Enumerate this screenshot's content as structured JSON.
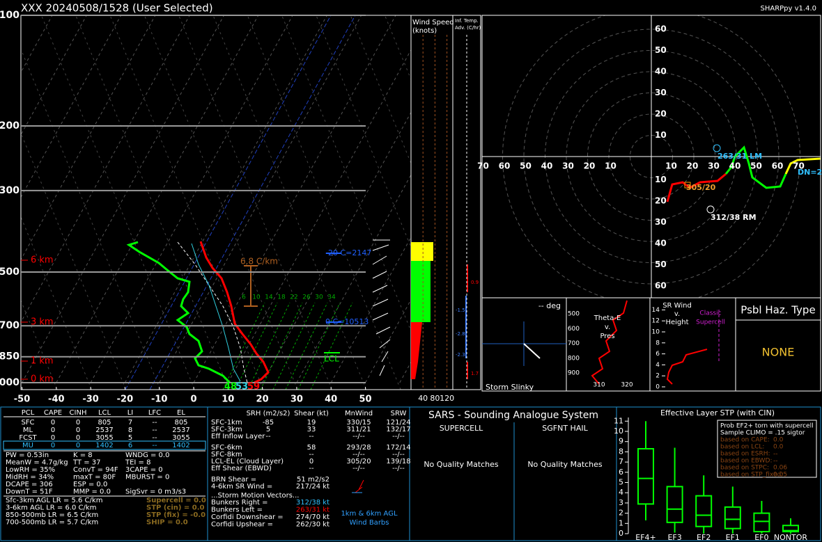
{
  "header": {
    "title": "XXX   20240508/1528  (User Selected)",
    "version": "SHARPpy v1.4.0"
  },
  "skewt": {
    "pressure_ticks": [
      100,
      200,
      300,
      500,
      700,
      850,
      1000
    ],
    "temperature_ticks": [
      -50,
      -40,
      -30,
      -20,
      -10,
      0,
      10,
      20,
      30,
      40,
      50
    ],
    "height_labels": [
      "6 km",
      "3 km",
      "1 km",
      "0 km"
    ],
    "lapse_rate": "6.8 C/km",
    "minus20_level": "-20 C=2147",
    "freezing_level": "0 C=10513",
    "lcl": "LCL",
    "mixing_ratios": [
      6,
      10,
      14,
      18,
      22,
      26,
      30,
      34
    ],
    "surface_dewpoint": 48,
    "surface_wetbulb": 53,
    "surface_temperature": 59
  },
  "wind_speed": {
    "title": [
      "Wind Speed",
      "(knots)"
    ],
    "ticks": [
      40,
      80,
      120
    ]
  },
  "temp_advection": {
    "title": [
      "Inf. Temp.",
      "Adv. (C/hr)"
    ],
    "values": [
      "0.9",
      "-1.5",
      "-2.8",
      "-2.3",
      "1.7"
    ]
  },
  "hodograph": {
    "rings": [
      10,
      20,
      30,
      40,
      50,
      60
    ],
    "x_rings": [
      10,
      20,
      30,
      40,
      50,
      60,
      70
    ],
    "mean_wind": "305/20",
    "right_mover": "312/38 RM",
    "left_mover": "263/31 LM",
    "downshear": "DN=2"
  },
  "slinky": {
    "angle": "-- deg",
    "title": "Storm Slinky"
  },
  "theta_e": {
    "title": [
      "Theta-E",
      "v.",
      "Pres"
    ],
    "pressure_ticks": [
      500,
      600,
      700,
      800,
      900
    ],
    "theta_ticks": [
      310,
      320
    ]
  },
  "sr_wind": {
    "title": [
      "SR Wind",
      "v.",
      "Height"
    ],
    "reference": [
      "Classic",
      "Supercell"
    ],
    "height_ticks": [
      0,
      2,
      4,
      6,
      8,
      10,
      12,
      14
    ]
  },
  "hazard": {
    "title": "Psbl Haz. Type",
    "value": "NONE"
  },
  "parcel_table": {
    "header": [
      "PCL",
      "CAPE",
      "CINH",
      "LCL",
      "LI",
      "LFC",
      "EL"
    ],
    "rows": [
      [
        "SFC",
        "0",
        "0",
        "805",
        "7",
        "--",
        "805"
      ],
      [
        "ML",
        "0",
        "0",
        "2537",
        "8",
        "--",
        "2537"
      ],
      [
        "FCST",
        "0",
        "0",
        "3055",
        "5",
        "--",
        "3055"
      ],
      [
        "MU",
        "0",
        "0",
        "1402",
        "6",
        "--",
        "1402"
      ]
    ]
  },
  "indices": [
    [
      "PW = 0.53in",
      "K = 8",
      "WNDG = 0.0"
    ],
    [
      "MeanW = 4.7g/kg",
      "TT = 37",
      "TEI = 8"
    ],
    [
      "LowRH = 35%",
      "ConvT = 94F",
      "3CAPE = 0"
    ],
    [
      "MidRH = 34%",
      "maxT = 80F",
      "MBURST = 0"
    ],
    [
      "DCAPE = 306",
      "ESP = 0.0"
    ],
    [
      "DownT = 51F",
      "MMP = 0.0",
      "SigSvr = 0 m3/s3"
    ]
  ],
  "lapse_rates": [
    "Sfc-3km AGL LR = 5.6 C/km",
    "3-6km AGL LR = 6.0 C/km",
    "850-500mb LR = 6.5 C/km",
    "700-500mb LR = 5.7 C/km"
  ],
  "composites": [
    "Supercell = 0.0",
    "STP (cin) = 0.0",
    "STP (fix) = -0.0",
    "SHIP = 0.0"
  ],
  "kinematics": {
    "header": [
      "SRH (m2/s2)",
      "Shear (kt)",
      "MnWind",
      "SRW"
    ],
    "rows": [
      {
        "label": "SFC-1km",
        "srh": "-85",
        "shear": "19",
        "mnwind": "330/15",
        "srw": "121/24"
      },
      {
        "label": "SFC-3km",
        "srh": "5",
        "shear": "33",
        "mnwind": "311/21",
        "srw": "132/17"
      },
      {
        "label": "Eff Inflow Layer",
        "srh": "--",
        "shear": "--",
        "mnwind": "--/--",
        "srw": "--/--"
      },
      {
        "label": "SFC-6km",
        "shear": "58",
        "mnwind": "293/28",
        "srw": "172/14"
      },
      {
        "label": "SFC-8km",
        "shear": "--",
        "mnwind": "--/--",
        "srw": "--/--"
      },
      {
        "label": "LCL-EL (Cloud Layer)",
        "shear": "0",
        "mnwind": "305/20",
        "srw": "139/18"
      },
      {
        "label": "Eff Shear (EBWD)",
        "shear": "--",
        "mnwind": "--/--",
        "srw": "--/--"
      }
    ],
    "misc": [
      {
        "label": "BRN Shear =",
        "value": "51 m2/s2"
      },
      {
        "label": "4-6km SR Wind =",
        "value": "217/24 kt"
      }
    ],
    "motion_title": "...Storm Motion Vectors...",
    "motions": [
      {
        "label": "Bunkers Right =",
        "value": "312/38 kt"
      },
      {
        "label": "Bunkers Left =",
        "value": "263/31 kt"
      },
      {
        "label": "Corfidi Downshear =",
        "value": "274/70 kt"
      },
      {
        "label": "Corfidi Upshear =",
        "value": "262/30 kt"
      }
    ],
    "barb_caption": [
      "1km & 6km AGL",
      "Wind Barbs"
    ]
  },
  "sars": {
    "title": "SARS - Sounding Analogue System",
    "columns": [
      "SUPERCELL",
      "SGFNT HAIL"
    ],
    "matches": [
      "No Quality Matches",
      "No Quality Matches"
    ]
  },
  "stp": {
    "title": "Effective Layer STP (with CIN)",
    "yticks": [
      0,
      1,
      2,
      3,
      4,
      5,
      6,
      7,
      8,
      9,
      10,
      11
    ],
    "categories": [
      "EF4+",
      "EF3",
      "EF2",
      "EF1",
      "EF0",
      "NONTOR"
    ],
    "boxes": [
      [
        1.3,
        2.9,
        5.4,
        8.3,
        11
      ],
      [
        0.1,
        1.1,
        2.4,
        4.6,
        8.4
      ],
      [
        0,
        0.7,
        1.8,
        3.7,
        5.7
      ],
      [
        0,
        0.5,
        1.4,
        2.6,
        4.6
      ],
      [
        0,
        0.2,
        1.2,
        2,
        3.2
      ],
      [
        0,
        0.2,
        0.3,
        0.8,
        1.5
      ]
    ],
    "legend": {
      "title": [
        "Prob EF2+ torn with supercell",
        "Sample CLIMO = .15 sigtor"
      ],
      "rows": [
        {
          "label": "based on CAPE:",
          "value": "0.0"
        },
        {
          "label": "based on LCL:",
          "value": "0.0"
        },
        {
          "label": "based on ESRH:",
          "value": "--"
        },
        {
          "label": "based on EBWD:",
          "value": "--"
        },
        {
          "label": "based on STPC:",
          "value": "0.06"
        },
        {
          "label": "based on STP_fixed:",
          "value": "0.05"
        }
      ]
    }
  }
}
